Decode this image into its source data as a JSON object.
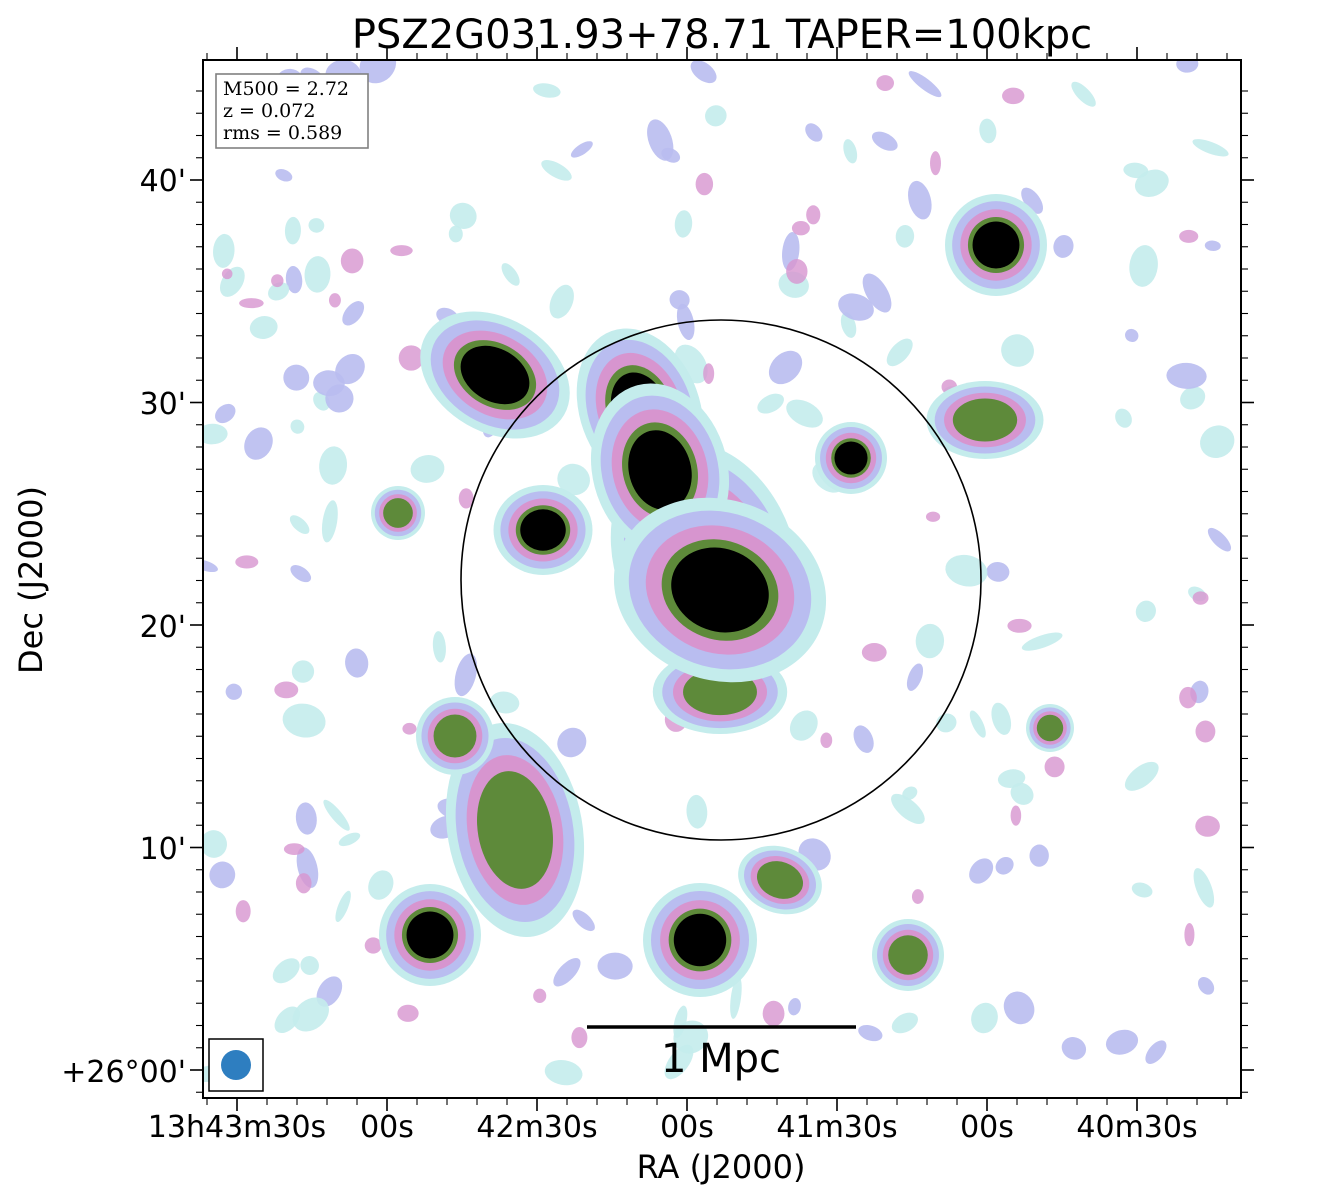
{
  "chart_data": {
    "type": "image",
    "title": "PSZ2G031.93+78.71 TAPER=100kpc",
    "xlabel": "RA (J2000)",
    "ylabel": "Dec (J2000)",
    "x_ticks": [
      "13h43m30s",
      "00s",
      "42m30s",
      "00s",
      "41m30s",
      "00s",
      "40m30s"
    ],
    "y_ticks": [
      "40'",
      "30'",
      "20'",
      "10'",
      "+26°00'"
    ],
    "info_box": [
      "M500 = 2.72",
      "z = 0.072",
      "rms = 0.589"
    ],
    "scale_bar_label": "1 Mpc",
    "colormap": "cubehelix_r",
    "colors": {
      "faint": "#c4ecec",
      "low": "#b9bdf0",
      "mid": "#d795cf",
      "high": "#5e8a3a",
      "peak": "#000000",
      "beam": "#2e7ec0"
    },
    "sources": [
      {
        "name": "central-halo",
        "peak": 1.0
      },
      {
        "name": "northwest-tail",
        "peak": 1.0
      },
      {
        "name": "south-center-point",
        "peak": 1.0
      },
      {
        "name": "southwest-point",
        "peak": 1.0
      },
      {
        "name": "northeast-point",
        "peak": 1.0
      },
      {
        "name": "west-knot",
        "peak": 0.95
      },
      {
        "name": "east-point",
        "peak": 0.9
      },
      {
        "name": "southwest-extended",
        "peak": 0.85
      },
      {
        "name": "west-source",
        "peak": 0.8
      },
      {
        "name": "southeast-point",
        "peak": 0.85
      },
      {
        "name": "east-column",
        "peak": 0.7
      },
      {
        "name": "east-knot",
        "peak": 0.75
      },
      {
        "name": "south-knot",
        "peak": 0.75
      },
      {
        "name": "center-south-knot",
        "peak": 0.7
      },
      {
        "name": "north-west-knot",
        "peak": 0.7
      }
    ]
  }
}
